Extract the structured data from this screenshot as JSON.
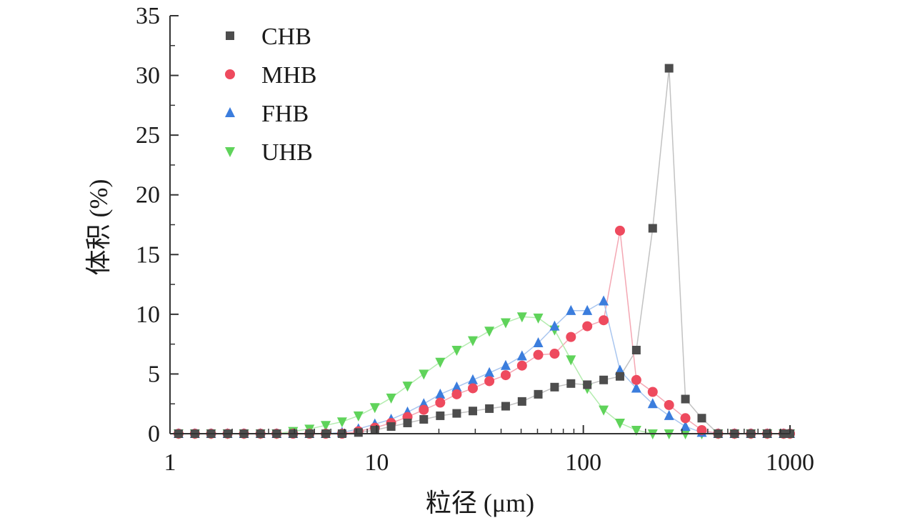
{
  "chart_data": {
    "type": "scatter",
    "xlabel": "粒径 (μm)",
    "ylabel": "体积 (%)",
    "xscale": "log",
    "xlim": [
      1,
      1000
    ],
    "ylim": [
      0,
      35
    ],
    "x_ticks": [
      "1",
      "10",
      "100",
      "1000"
    ],
    "y_ticks": [
      "0",
      "5",
      "10",
      "15",
      "20",
      "25",
      "30",
      "35"
    ],
    "legend_position": "top-left",
    "series": [
      {
        "name": "CHB",
        "color": "#4d4d4d",
        "marker": "square",
        "line_color": "#c2c2c2",
        "x": [
          1.1,
          1.32,
          1.58,
          1.9,
          2.28,
          2.74,
          3.28,
          3.94,
          4.73,
          5.67,
          6.8,
          8.16,
          9.8,
          11.75,
          14.1,
          16.9,
          20.3,
          24.4,
          29.2,
          35.1,
          42.1,
          50.5,
          60.5,
          72.6,
          87.1,
          104.5,
          125.4,
          150.4,
          180.5,
          216.6,
          259.9,
          311.8,
          374.2,
          449,
          538.8,
          646.6,
          775.9,
          931.1,
          1000
        ],
        "y": [
          0,
          0,
          0,
          0,
          0,
          0,
          0,
          0,
          0,
          0,
          0,
          0.1,
          0.3,
          0.6,
          0.9,
          1.2,
          1.5,
          1.7,
          1.9,
          2.1,
          2.3,
          2.7,
          3.3,
          3.9,
          4.2,
          4.1,
          4.5,
          4.8,
          7.0,
          17.2,
          30.6,
          2.9,
          1.3,
          0,
          0,
          0,
          0,
          0,
          0
        ]
      },
      {
        "name": "MHB",
        "color": "#ee4a5e",
        "marker": "circle",
        "line_color": "#f4a7b3",
        "x": [
          1.1,
          1.32,
          1.58,
          1.9,
          2.28,
          2.74,
          3.28,
          3.94,
          4.73,
          5.67,
          6.8,
          8.16,
          9.8,
          11.75,
          14.1,
          16.9,
          20.3,
          24.4,
          29.2,
          35.1,
          42.1,
          50.5,
          60.5,
          72.6,
          87.1,
          104.5,
          125.4,
          150.4,
          180.5,
          216.6,
          259.9,
          311.8,
          374.2,
          449,
          538.8,
          646.6,
          775.9,
          931.1,
          1000
        ],
        "y": [
          0,
          0,
          0,
          0,
          0,
          0,
          0,
          0,
          0,
          0,
          0,
          0.2,
          0.5,
          0.9,
          1.4,
          2.0,
          2.6,
          3.3,
          3.8,
          4.4,
          4.9,
          5.7,
          6.6,
          6.7,
          8.1,
          9.0,
          9.5,
          17.0,
          4.5,
          3.5,
          2.4,
          1.3,
          0.3,
          0,
          0,
          0,
          0,
          0,
          0
        ]
      },
      {
        "name": "FHB",
        "color": "#3b7ddd",
        "marker": "triangle-up",
        "line_color": "#a9c6ef",
        "x": [
          1.1,
          1.32,
          1.58,
          1.9,
          2.28,
          2.74,
          3.28,
          3.94,
          4.73,
          5.67,
          6.8,
          8.16,
          9.8,
          11.75,
          14.1,
          16.9,
          20.3,
          24.4,
          29.2,
          35.1,
          42.1,
          50.5,
          60.5,
          72.6,
          87.1,
          104.5,
          125.4,
          150.4,
          180.5,
          216.6,
          259.9,
          311.8,
          374.2,
          449,
          538.8,
          646.6,
          775.9,
          931.1,
          1000
        ],
        "y": [
          0,
          0,
          0,
          0,
          0,
          0,
          0,
          0,
          0,
          0,
          0.1,
          0.4,
          0.8,
          1.2,
          1.8,
          2.5,
          3.3,
          3.9,
          4.5,
          5.1,
          5.7,
          6.5,
          7.6,
          9.0,
          10.3,
          10.3,
          11.1,
          5.3,
          3.8,
          2.5,
          1.5,
          0.6,
          0.1,
          0,
          0,
          0,
          0,
          0,
          0
        ]
      },
      {
        "name": "UHB",
        "color": "#5fd35a",
        "marker": "triangle-down",
        "line_color": "#b3ecae",
        "x": [
          1.1,
          1.32,
          1.58,
          1.9,
          2.28,
          2.74,
          3.28,
          3.94,
          4.73,
          5.67,
          6.8,
          8.16,
          9.8,
          11.75,
          14.1,
          16.9,
          20.3,
          24.4,
          29.2,
          35.1,
          42.1,
          50.5,
          60.5,
          72.6,
          87.1,
          104.5,
          125.4,
          150.4,
          180.5,
          216.6,
          259.9,
          311.8,
          374.2,
          449,
          538.8,
          646.6,
          775.9,
          931.1,
          1000
        ],
        "y": [
          0,
          0,
          0,
          0,
          0,
          0,
          0,
          0.2,
          0.4,
          0.7,
          1.0,
          1.5,
          2.2,
          3.0,
          4.0,
          5.0,
          6.0,
          7.0,
          7.8,
          8.6,
          9.3,
          9.8,
          9.7,
          8.7,
          6.2,
          3.8,
          2.0,
          0.9,
          0.3,
          0,
          0,
          0,
          0,
          0,
          0,
          0,
          0,
          0,
          0
        ]
      }
    ]
  }
}
